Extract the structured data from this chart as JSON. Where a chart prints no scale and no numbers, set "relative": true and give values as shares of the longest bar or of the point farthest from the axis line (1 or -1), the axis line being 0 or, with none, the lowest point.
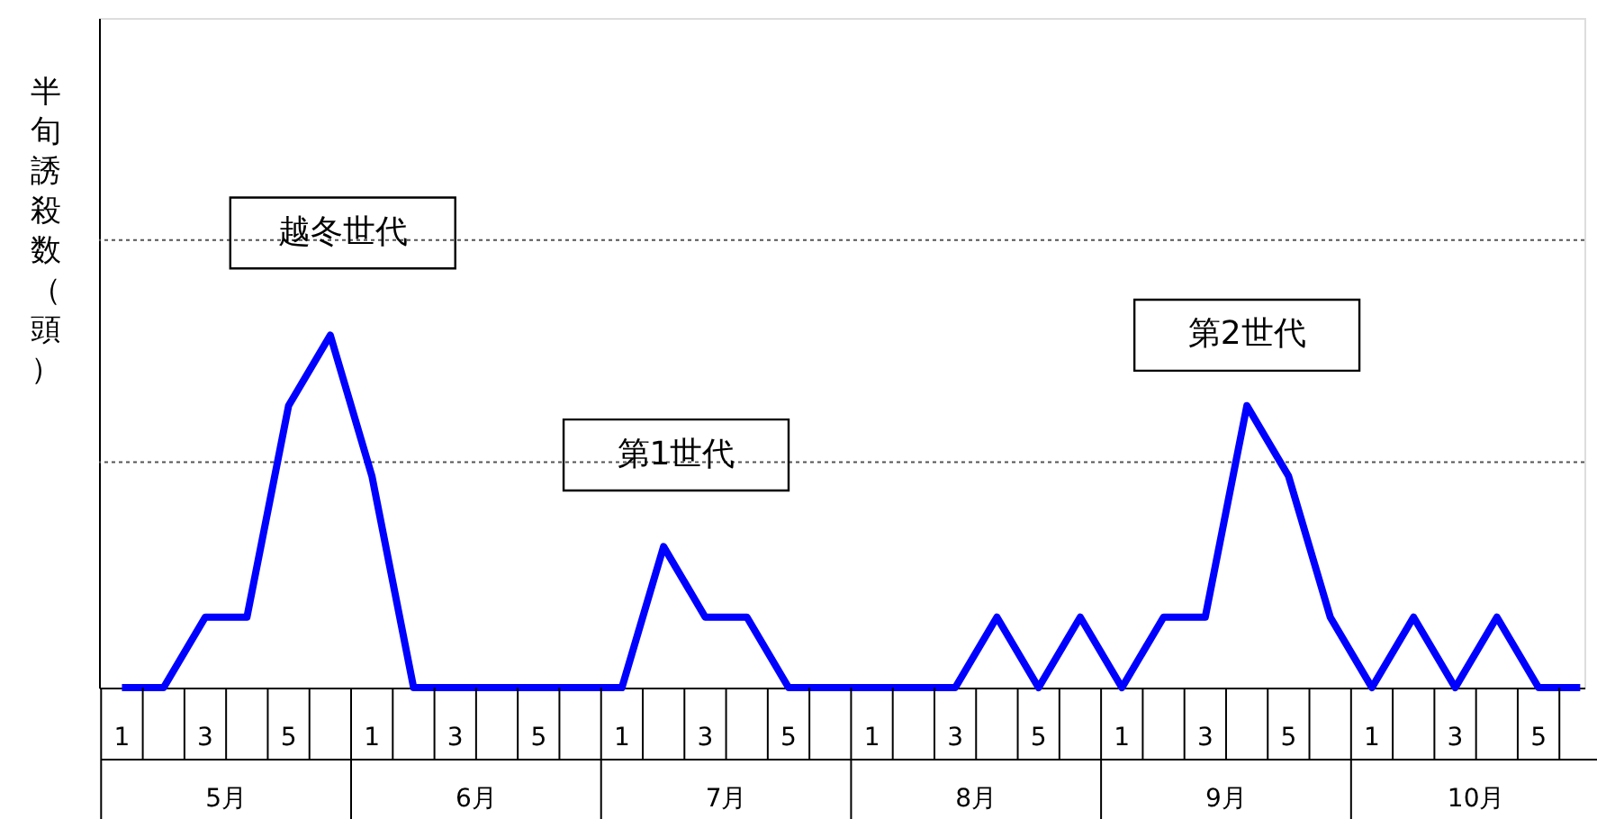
{
  "chart_data": {
    "type": "line",
    "relative": true,
    "ylabel": "半旬誘殺数（頭）",
    "categories": [
      "1",
      null,
      "3",
      null,
      "5",
      null,
      "1",
      null,
      "3",
      null,
      "5",
      null,
      "1",
      null,
      "3",
      null,
      "5",
      null,
      "1",
      null,
      "3",
      null,
      "5",
      null,
      "1",
      null,
      "3",
      null,
      "5",
      null,
      "1",
      null,
      "3",
      null,
      "5",
      null
    ],
    "series": [
      {
        "color": "#0000ff",
        "values": [
          0,
          0,
          0.2,
          0.2,
          0.8,
          1,
          0.6,
          0,
          0,
          0,
          0,
          0,
          0,
          0.4,
          0.2,
          0.2,
          0,
          0,
          0,
          0,
          0,
          0.2,
          0,
          0.2,
          0,
          0.2,
          0.2,
          0.8,
          0.6,
          0.2,
          0,
          0.2,
          0,
          0.2,
          0,
          0
        ]
      }
    ],
    "annotations": [
      "越冬世代",
      "第1世代",
      "第2世代",
      "5月",
      "6月",
      "7月",
      "8月",
      "9月",
      "10月"
    ],
    "ref_lines": [
      {
        "axis": "y",
        "value": 0.64,
        "color": "#555555",
        "line_style": "dotted"
      },
      {
        "axis": "y",
        "value": 1.27,
        "color": "#555555",
        "line_style": "dotted"
      }
    ],
    "marker": "none",
    "line_style": "solid"
  }
}
